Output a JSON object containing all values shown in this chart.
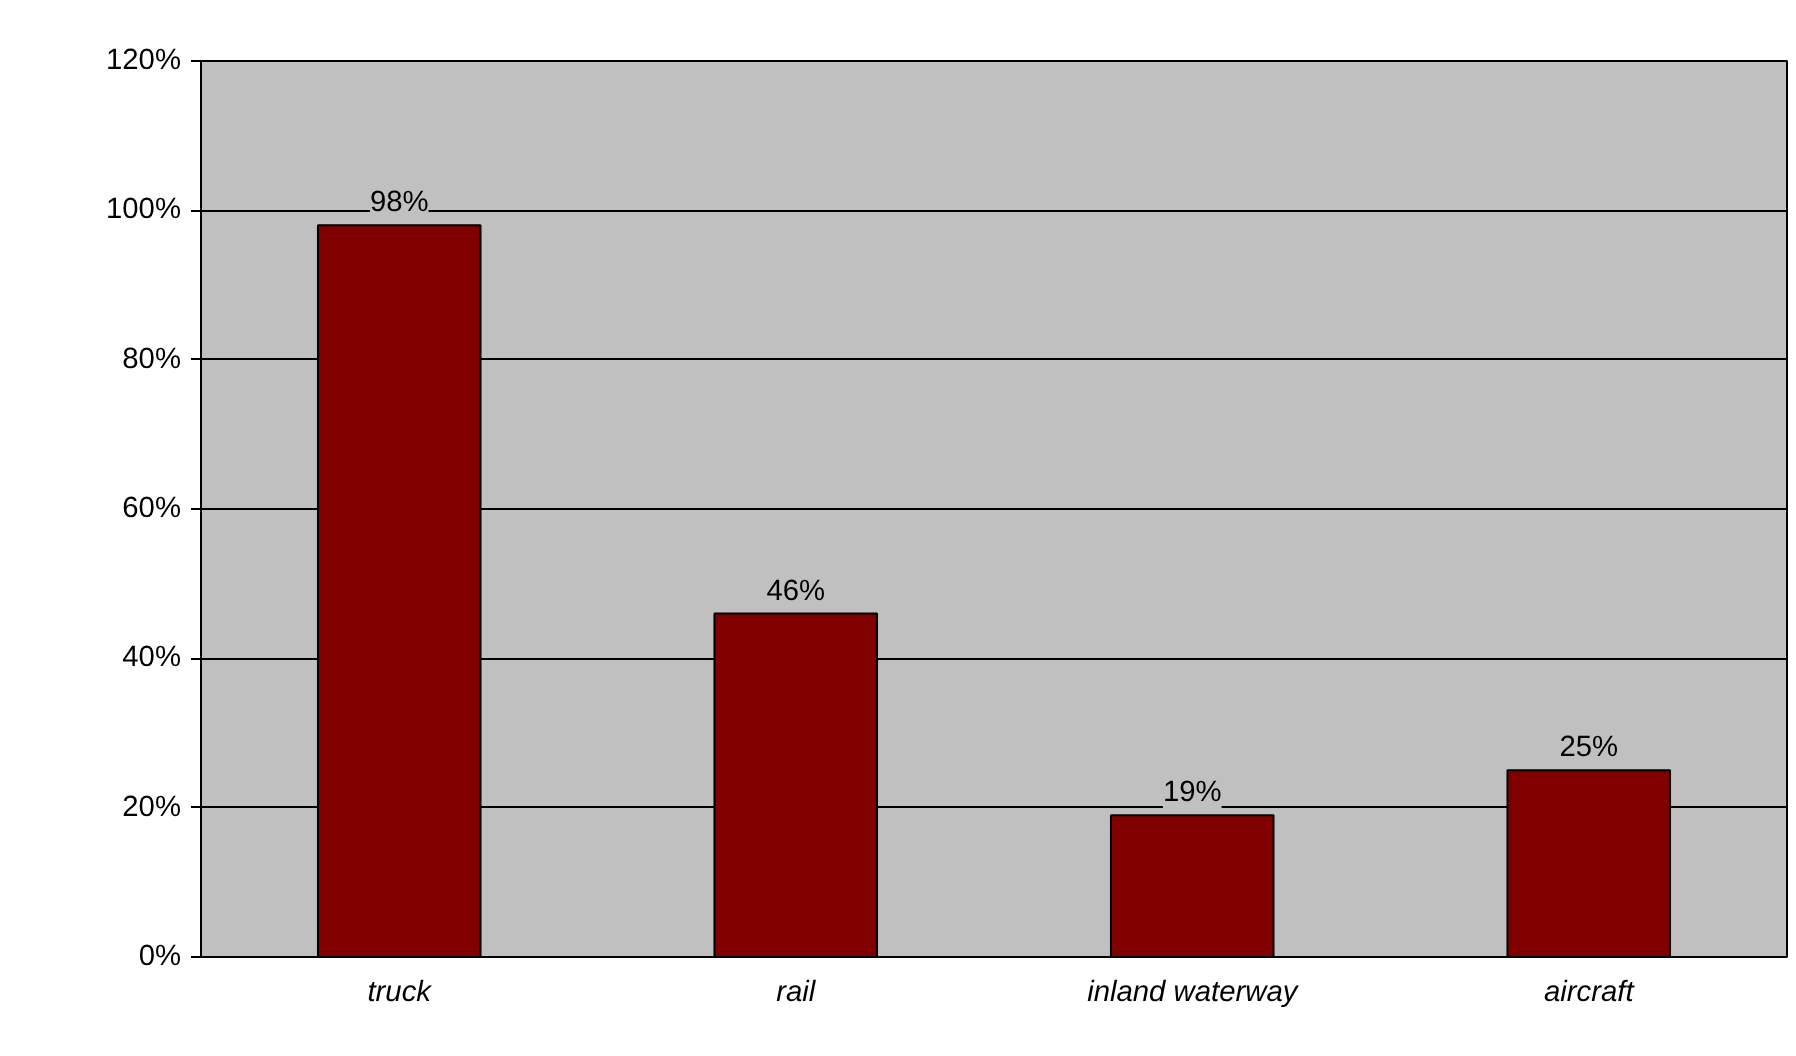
{
  "chart_data": {
    "type": "bar",
    "categories": [
      "truck",
      "rail",
      "inland waterway",
      "aircraft"
    ],
    "values": [
      98,
      46,
      19,
      25
    ],
    "value_labels": [
      "98%",
      "46%",
      "19%",
      "25%"
    ],
    "color": "#800000",
    "ylim": [
      0,
      120
    ],
    "yticks": [
      {
        "value": 0,
        "label": "0%"
      },
      {
        "value": 20,
        "label": "20%"
      },
      {
        "value": 40,
        "label": "40%"
      },
      {
        "value": 60,
        "label": "60%"
      },
      {
        "value": 80,
        "label": "80%"
      },
      {
        "value": 100,
        "label": "100%"
      },
      {
        "value": 120,
        "label": "120%"
      }
    ],
    "grid": "y"
  }
}
